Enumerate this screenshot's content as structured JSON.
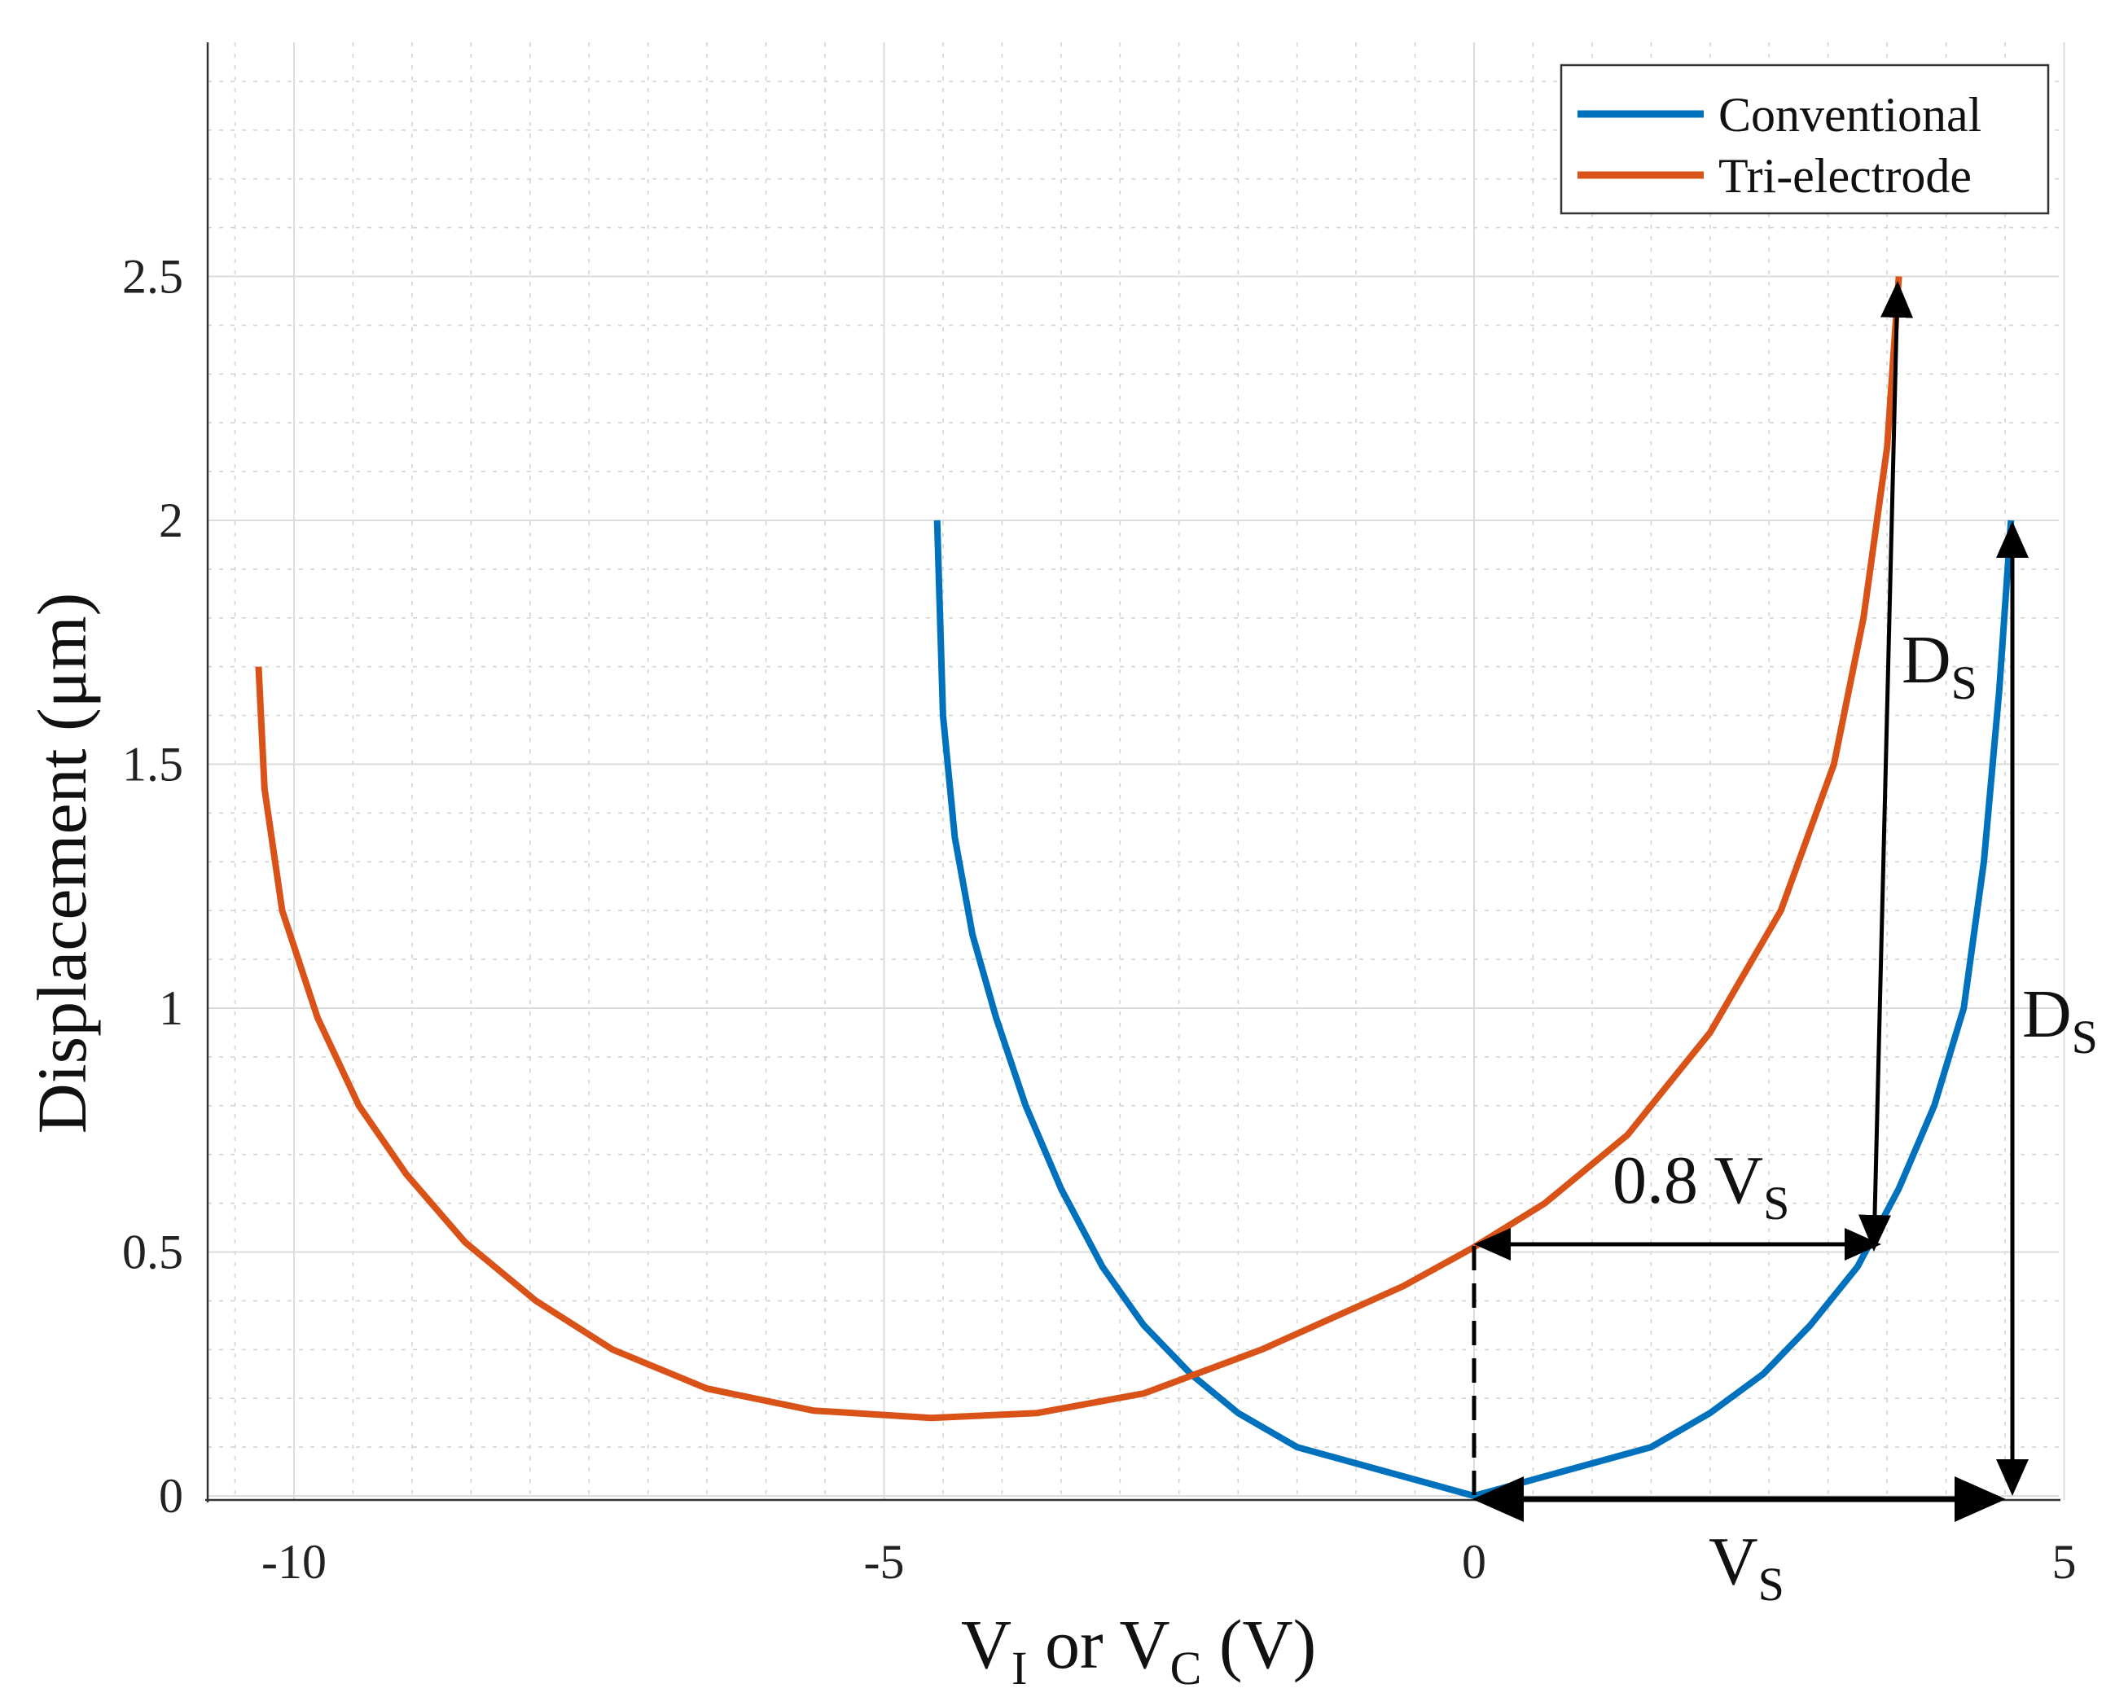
{
  "chart_data": {
    "type": "line",
    "title": "",
    "xlabel": {
      "main": "V",
      "sub1": "I",
      "mid": " or V",
      "sub2": "C",
      "tail": " (V)"
    },
    "ylabel": "Displacement (μm)",
    "xlim": [
      -10.8,
      5.05
    ],
    "ylim": [
      -0.02,
      2.98
    ],
    "xticks": [
      -10,
      -5,
      0,
      5
    ],
    "xtick_labels": [
      "-10",
      "-5",
      "0",
      "5"
    ],
    "yticks": [
      0,
      0.5,
      1,
      1.5,
      2,
      2.5
    ],
    "ytick_labels": [
      "0",
      "0.5",
      "1",
      "1.5",
      "2",
      "2.5"
    ],
    "grid": true,
    "minor_grid": true,
    "legend_position": "top-right",
    "series": [
      {
        "name": "Conventional",
        "color": "#0072BD",
        "x": [
          -4.55,
          -4.5,
          -4.4,
          -4.25,
          -4.05,
          -3.8,
          -3.5,
          -3.15,
          -2.8,
          -2.4,
          -2.0,
          -1.5,
          0,
          1.5,
          2.0,
          2.45,
          2.85,
          3.25,
          3.6,
          3.9,
          4.15,
          4.32,
          4.45,
          4.55
        ],
        "y": [
          2.0,
          1.6,
          1.35,
          1.15,
          0.98,
          0.8,
          0.63,
          0.47,
          0.35,
          0.25,
          0.17,
          0.1,
          0,
          0.1,
          0.17,
          0.25,
          0.35,
          0.47,
          0.63,
          0.8,
          1.0,
          1.3,
          1.65,
          2.0
        ]
      },
      {
        "name": "Tri-electrode",
        "color": "#D95319",
        "x": [
          -10.3,
          -10.25,
          -10.1,
          -9.8,
          -9.45,
          -9.05,
          -8.55,
          -7.95,
          -7.3,
          -6.5,
          -5.6,
          -4.6,
          -3.7,
          -2.8,
          -1.8,
          -0.6,
          0,
          0.6,
          1.3,
          2.0,
          2.6,
          3.05,
          3.3,
          3.5,
          3.6
        ],
        "y": [
          1.7,
          1.45,
          1.2,
          0.98,
          0.8,
          0.66,
          0.52,
          0.4,
          0.3,
          0.22,
          0.175,
          0.16,
          0.17,
          0.21,
          0.3,
          0.43,
          0.51,
          0.6,
          0.74,
          0.95,
          1.2,
          1.5,
          1.8,
          2.15,
          2.5
        ]
      }
    ],
    "annotations": {
      "ds_upper": {
        "main": "D",
        "sub": "S"
      },
      "ds_lower": {
        "main": "D",
        "sub": "S"
      },
      "vs_frac": {
        "main": "0.8 V",
        "sub": "S"
      },
      "vs": {
        "main": "V",
        "sub": "S"
      }
    }
  }
}
